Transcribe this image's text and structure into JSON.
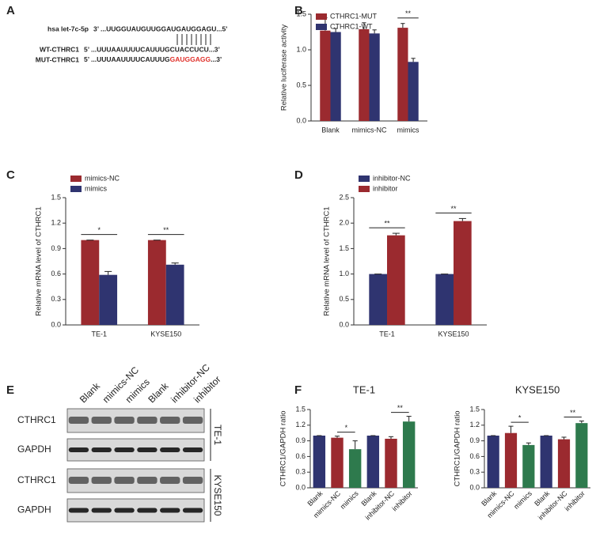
{
  "panel_labels": [
    "A",
    "B",
    "C",
    "D",
    "E",
    "F"
  ],
  "sequence_panel": {
    "rows": [
      {
        "name": "hsa let-7c-5p",
        "sequence": [
          "3’ ...UUGGUAUGUUGGAUGAUGGAGU...5’"
        ]
      },
      {
        "name": "WT-CTHRC1",
        "sequence": [
          "5’ ...UUUAAUUUUCAUUUGCUACCUCU...3’"
        ]
      },
      {
        "name": "MUT-CTHRC1",
        "sequence": [
          "5’ ...UUUAAUUUUCAUUUG",
          "GAUGGAGG",
          "...3’"
        ]
      }
    ]
  },
  "blot_panel": {
    "lanes": [
      "Blank",
      "mimics-NC",
      "mimics",
      "Blank",
      "inhibitor-NC",
      "inhibitor"
    ],
    "rows": [
      "CTHRC1",
      "GAPDH",
      "CTHRC1",
      "GAPDH"
    ],
    "groups": [
      "TE-1",
      "KYSE150"
    ]
  },
  "chart_data": [
    {
      "type": "bar",
      "ylabel": "Relative luciferase activity",
      "categories": [
        "Blank",
        "mimics-NC",
        "mimics"
      ],
      "series": [
        {
          "name": "CTHRC1-MUT",
          "color": "#9b2a2f",
          "values": [
            1.27,
            1.29,
            1.31
          ],
          "errors": [
            0.18,
            0.09,
            0.06
          ]
        },
        {
          "name": "CTHRC1-WT",
          "color": "#2f3470",
          "values": [
            1.25,
            1.23,
            0.83
          ],
          "errors": [
            0.05,
            0.05,
            0.05
          ]
        }
      ],
      "significance": [
        null,
        null,
        "**"
      ],
      "ylim": [
        0,
        1.5
      ],
      "yticks": [
        {
          "value": 0,
          "label": "0.0"
        },
        0.5,
        {
          "value": 1,
          "label": "1.0"
        },
        1.5
      ],
      "legend": "upper left"
    },
    {
      "type": "bar",
      "ylabel": "Relative mRNA level of CTHRC1",
      "categories": [
        "TE-1",
        "KYSE150"
      ],
      "series": [
        {
          "name": "mimics-NC",
          "color": "#9b2a2f",
          "values": [
            1.0,
            1.0
          ],
          "errors": [
            0,
            0
          ]
        },
        {
          "name": "mimics",
          "color": "#2f3470",
          "values": [
            0.59,
            0.71
          ],
          "errors": [
            0.04,
            0.02
          ]
        }
      ],
      "significance": [
        "*",
        "**"
      ],
      "ylim": [
        0,
        1.5
      ],
      "yticks": [
        {
          "value": 0,
          "label": "0.0"
        },
        0.3,
        0.6,
        0.9,
        1.2,
        1.5
      ],
      "legend": "upper left"
    },
    {
      "type": "bar",
      "ylabel": "Relative mRNA level of CTHRC1",
      "categories": [
        "TE-1",
        "KYSE150"
      ],
      "series": [
        {
          "name": "inhibitor-NC",
          "color": "#2f3470",
          "values": [
            1.0,
            1.0
          ],
          "errors": [
            0,
            0
          ]
        },
        {
          "name": "inhibitor",
          "color": "#9b2a2f",
          "values": [
            1.76,
            2.04
          ],
          "errors": [
            0.04,
            0.05
          ]
        }
      ],
      "significance": [
        "**",
        "**"
      ],
      "ylim": [
        0,
        2.5
      ],
      "yticks": [
        {
          "value": 0,
          "label": "0.0"
        },
        0.5,
        {
          "value": 1,
          "label": "1.0"
        },
        1.5,
        {
          "value": 2,
          "label": "2.0"
        },
        2.5
      ],
      "legend": "upper left"
    },
    {
      "type": "bar",
      "title": "TE-1",
      "ylabel": "CTHRC1/GAPDH ratio",
      "categories": [
        "Blank",
        "mimics-NC",
        "mimics",
        "Blank",
        "inhibitor-NC",
        "inhibitor"
      ],
      "values": [
        1.0,
        0.96,
        0.74,
        1.0,
        0.94,
        1.27
      ],
      "errors": [
        0,
        0.03,
        0.16,
        0,
        0.04,
        0.1
      ],
      "colors": [
        "#2f3470",
        "#9b2a2f",
        "#2e7a4d",
        "#2f3470",
        "#9b2a2f",
        "#2e7a4d"
      ],
      "significance": [
        null,
        null,
        "*",
        null,
        null,
        "**"
      ],
      "ylim": [
        0,
        1.5
      ],
      "yticks": [
        {
          "value": 0,
          "label": "0.0"
        },
        0.3,
        0.6,
        0.9,
        1.2,
        1.5
      ]
    },
    {
      "type": "bar",
      "title": "KYSE150",
      "ylabel": "CTHRC1/GAPDH ratio",
      "categories": [
        "Blank",
        "mimics-NC",
        "mimics",
        "Blank",
        "inhibitor-NC",
        "inhibitor"
      ],
      "values": [
        1.0,
        1.05,
        0.82,
        1.0,
        0.93,
        1.24
      ],
      "errors": [
        0,
        0.13,
        0.04,
        0,
        0.04,
        0.04
      ],
      "colors": [
        "#2f3470",
        "#9b2a2f",
        "#2e7a4d",
        "#2f3470",
        "#9b2a2f",
        "#2e7a4d"
      ],
      "significance": [
        null,
        null,
        "*",
        null,
        null,
        "**"
      ],
      "ylim": [
        0,
        1.5
      ],
      "yticks": [
        {
          "value": 0,
          "label": "0.0"
        },
        0.3,
        0.6,
        0.9,
        1.2,
        1.5
      ]
    }
  ]
}
